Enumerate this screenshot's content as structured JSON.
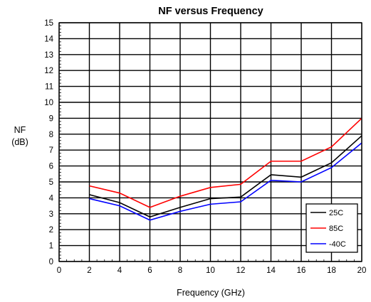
{
  "chart_data": {
    "type": "line",
    "title": "NF versus Frequency",
    "xlabel": "Frequency (GHz)",
    "ylabel": [
      "NF",
      "(dB)"
    ],
    "xlim": [
      0,
      20
    ],
    "ylim": [
      0,
      15
    ],
    "x_ticks": [
      0,
      2,
      4,
      6,
      8,
      10,
      12,
      14,
      16,
      18,
      20
    ],
    "y_ticks": [
      0,
      1,
      2,
      3,
      4,
      5,
      6,
      7,
      8,
      9,
      10,
      11,
      12,
      13,
      14,
      15
    ],
    "grid": true,
    "legend_position": "bottom-right",
    "series": [
      {
        "name": "25C",
        "color": "#000000",
        "x": [
          2,
          4,
          6,
          8,
          10,
          12,
          14,
          16,
          18,
          20
        ],
        "y": [
          4.2,
          3.7,
          2.8,
          3.4,
          3.95,
          4.05,
          5.45,
          5.3,
          6.2,
          7.9
        ]
      },
      {
        "name": "85C",
        "color": "#ff0000",
        "x": [
          2,
          4,
          6,
          8,
          10,
          12,
          14,
          16,
          18,
          20
        ],
        "y": [
          4.75,
          4.3,
          3.4,
          4.1,
          4.65,
          4.85,
          6.3,
          6.3,
          7.2,
          9.0
        ]
      },
      {
        "name": "-40C",
        "color": "#0000ff",
        "x": [
          2,
          4,
          6,
          8,
          10,
          12,
          14,
          16,
          18,
          20
        ],
        "y": [
          3.95,
          3.5,
          2.6,
          3.15,
          3.6,
          3.75,
          5.1,
          5.0,
          5.9,
          7.45
        ]
      }
    ]
  }
}
